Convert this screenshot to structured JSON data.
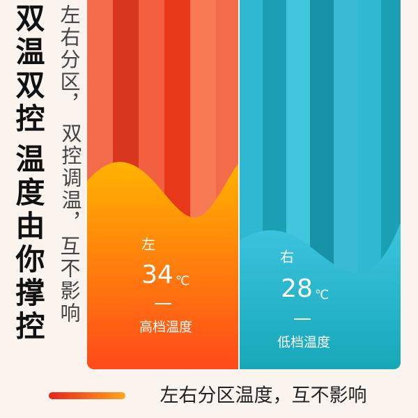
{
  "headline": [
    "双温双控",
    "温度由你撑控"
  ],
  "side_text": [
    "左右分区，",
    "双控调温，",
    "互不影响"
  ],
  "left_zone": {
    "side": "左",
    "temperature": 34,
    "unit": "℃",
    "level": "高档温度"
  },
  "right_zone": {
    "side": "右",
    "temperature": 28,
    "unit": "℃",
    "level": "低档温度"
  },
  "footer": "左右分区温度，互不影响"
}
